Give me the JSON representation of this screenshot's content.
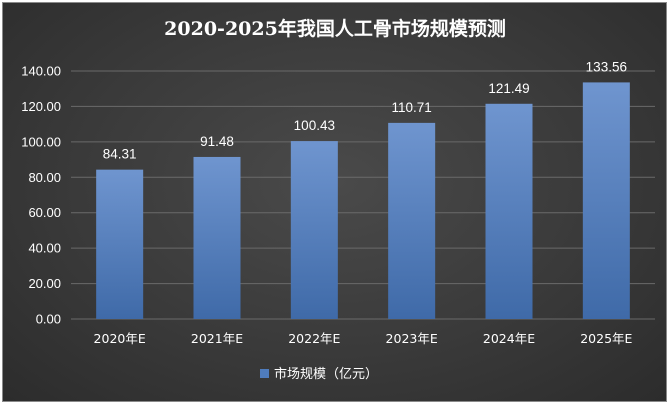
{
  "chart_data": {
    "type": "bar",
    "title": "2020-2025年我国人工骨市场规模预测",
    "categories": [
      "2020年E",
      "2021年E",
      "2022年E",
      "2023年E",
      "2024年E",
      "2025年E"
    ],
    "series": [
      {
        "name": "市场规模（亿元）",
        "values": [
          84.31,
          91.48,
          100.43,
          110.71,
          121.49,
          133.56
        ],
        "labels": [
          "84.31",
          "91.48",
          "100.43",
          "110.71",
          "121.49",
          "133.56"
        ]
      }
    ],
    "yticks": [
      "0.00",
      "20.00",
      "40.00",
      "60.00",
      "80.00",
      "100.00",
      "120.00",
      "140.00"
    ],
    "ylim": [
      0,
      140
    ],
    "xlabel": "",
    "ylabel": "",
    "grid": true,
    "legend_position": "bottom",
    "colors": {
      "bar_top": "#6f95cf",
      "bar_bottom": "#3f6aa8",
      "legend_swatch": "#4f7cbd",
      "gridline": "#6a6a6a",
      "text": "#ffffff"
    }
  }
}
